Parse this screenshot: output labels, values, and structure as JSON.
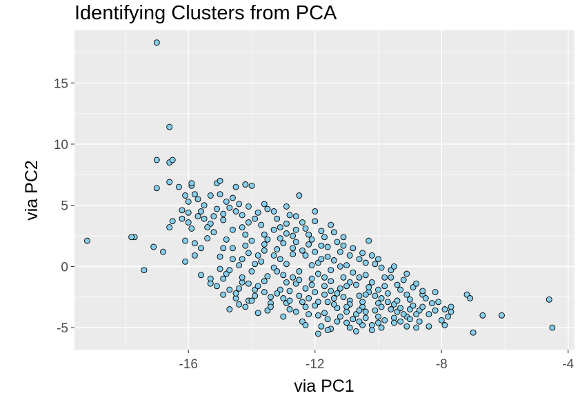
{
  "chart_data": {
    "type": "scatter",
    "title": "Identifying Clusters from PCA",
    "xlabel": "via PC1",
    "ylabel": "via PC2",
    "xlim": [
      -19.6,
      -3.8
    ],
    "ylim": [
      -6.8,
      19.3
    ],
    "x_ticks": [
      -16,
      -12,
      -8,
      -4
    ],
    "y_ticks": [
      -5,
      0,
      5,
      10,
      15
    ],
    "x_tick_labels": [
      "-16",
      "-12",
      "-8",
      "-4"
    ],
    "y_tick_labels": [
      "-5",
      "0",
      "5",
      "10",
      "15"
    ],
    "grid": true,
    "legend": "none",
    "colors": {
      "panel_background": "#ebebeb",
      "gridline": "#ffffff",
      "point_fill": "#87ceeb",
      "point_outline": "#000000"
    },
    "points": [
      [
        -17.0,
        18.3
      ],
      [
        -16.6,
        11.4
      ],
      [
        -17.0,
        8.7
      ],
      [
        -16.6,
        8.5
      ],
      [
        -16.5,
        8.7
      ],
      [
        -16.6,
        6.9
      ],
      [
        -17.0,
        6.4
      ],
      [
        -16.3,
        6.5
      ],
      [
        -15.9,
        6.6
      ],
      [
        -15.9,
        6.8
      ],
      [
        -15.1,
        6.8
      ],
      [
        -15.0,
        7.0
      ],
      [
        -14.5,
        6.5
      ],
      [
        -14.2,
        6.7
      ],
      [
        -14.0,
        6.6
      ],
      [
        -12.5,
        5.8
      ],
      [
        -15.7,
        5.5
      ],
      [
        -16.0,
        5.3
      ],
      [
        -15.3,
        5.8
      ],
      [
        -15.0,
        5.9
      ],
      [
        -16.2,
        4.6
      ],
      [
        -16.0,
        4.4
      ],
      [
        -15.6,
        4.5
      ],
      [
        -16.5,
        3.7
      ],
      [
        -16.2,
        3.9
      ],
      [
        -15.9,
        3.1
      ],
      [
        -15.8,
        1.9
      ],
      [
        -16.6,
        3.2
      ],
      [
        -16.1,
        2.1
      ],
      [
        -15.6,
        1.5
      ],
      [
        -15.8,
        0.9
      ],
      [
        -16.8,
        1.2
      ],
      [
        -17.1,
        1.6
      ],
      [
        -16.1,
        0.4
      ],
      [
        -17.7,
        2.4
      ],
      [
        -17.8,
        2.4
      ],
      [
        -19.2,
        2.1
      ],
      [
        -17.4,
        -0.3
      ],
      [
        -15.6,
        -0.7
      ],
      [
        -15.3,
        -1.0
      ],
      [
        -15.3,
        -1.4
      ],
      [
        -15.0,
        -0.2
      ],
      [
        -14.9,
        -1.0
      ],
      [
        -14.7,
        -1.9
      ],
      [
        -14.5,
        -2.6
      ],
      [
        -14.4,
        -3.1
      ],
      [
        -14.1,
        -2.8
      ],
      [
        -14.7,
        -3.5
      ],
      [
        -13.8,
        -3.8
      ],
      [
        -11.9,
        -5.5
      ],
      [
        -11.5,
        -5.1
      ],
      [
        -10.7,
        -5.3
      ],
      [
        -10.2,
        -5.2
      ],
      [
        -9.1,
        -4.9
      ],
      [
        -8.8,
        -5.0
      ],
      [
        -8.4,
        -4.9
      ],
      [
        -7.9,
        -4.8
      ],
      [
        -7.7,
        -3.7
      ],
      [
        -7.9,
        -3.5
      ],
      [
        -8.2,
        -2.1
      ],
      [
        -7.2,
        -2.3
      ],
      [
        -7.1,
        -2.6
      ],
      [
        -6.7,
        -4.0
      ],
      [
        -7.0,
        -5.4
      ],
      [
        -6.1,
        -4.0
      ],
      [
        -4.6,
        -2.7
      ],
      [
        -4.5,
        -5.0
      ],
      [
        -9.6,
        -0.9
      ],
      [
        -10.3,
        2.1
      ],
      [
        -11.1,
        2.4
      ],
      [
        -11.5,
        3.4
      ],
      [
        -12.0,
        4.5
      ],
      [
        -12.8,
        4.2
      ],
      [
        -13.5,
        4.7
      ],
      [
        -14.3,
        4.2
      ],
      [
        -14.9,
        4.3
      ],
      [
        -15.3,
        3.5
      ],
      [
        -14.6,
        3.0
      ],
      [
        -14.2,
        2.6
      ],
      [
        -13.7,
        3.4
      ],
      [
        -13.2,
        3.9
      ],
      [
        -12.6,
        3.0
      ],
      [
        -12.2,
        2.6
      ],
      [
        -11.8,
        1.7
      ],
      [
        -11.2,
        1.2
      ],
      [
        -10.6,
        0.6
      ],
      [
        -10.1,
        0.2
      ],
      [
        -9.6,
        -0.3
      ],
      [
        -9.2,
        -1.1
      ],
      [
        -8.9,
        -1.7
      ],
      [
        -8.6,
        -2.3
      ],
      [
        -8.3,
        -3.0
      ],
      [
        -9.0,
        -3.5
      ],
      [
        -9.5,
        -4.2
      ],
      [
        -10.0,
        -4.6
      ],
      [
        -10.5,
        -4.8
      ],
      [
        -11.0,
        -4.6
      ],
      [
        -11.6,
        -4.3
      ],
      [
        -12.2,
        -3.9
      ],
      [
        -12.8,
        -3.5
      ],
      [
        -13.4,
        -3.0
      ],
      [
        -13.9,
        -2.4
      ],
      [
        -14.4,
        -1.8
      ],
      [
        -14.8,
        -0.6
      ],
      [
        -14.6,
        0.6
      ],
      [
        -14.1,
        1.1
      ],
      [
        -13.6,
        1.8
      ],
      [
        -13.1,
        2.3
      ],
      [
        -12.7,
        1.5
      ],
      [
        -12.3,
        0.9
      ],
      [
        -11.9,
        0.3
      ],
      [
        -11.5,
        -0.3
      ],
      [
        -11.1,
        -0.9
      ],
      [
        -10.7,
        -1.5
      ],
      [
        -10.3,
        -2.1
      ],
      [
        -9.9,
        -2.6
      ],
      [
        -9.5,
        -3.1
      ],
      [
        -10.1,
        -3.6
      ],
      [
        -10.7,
        -3.9
      ],
      [
        -11.3,
        -3.4
      ],
      [
        -11.9,
        -2.9
      ],
      [
        -12.5,
        -2.4
      ],
      [
        -13.1,
        -1.9
      ],
      [
        -13.6,
        -1.2
      ],
      [
        -14.0,
        -0.4
      ],
      [
        -13.7,
        0.4
      ],
      [
        -13.3,
        0.9
      ],
      [
        -12.9,
        0.2
      ],
      [
        -12.5,
        -0.4
      ],
      [
        -12.1,
        -1.0
      ],
      [
        -11.7,
        -1.6
      ],
      [
        -11.3,
        -2.2
      ],
      [
        -10.9,
        -2.8
      ],
      [
        -10.5,
        -3.3
      ],
      [
        -9.8,
        -1.6
      ],
      [
        -10.4,
        -0.7
      ],
      [
        -11.0,
        0.1
      ],
      [
        -11.6,
        0.8
      ],
      [
        -12.2,
        1.8
      ],
      [
        -12.9,
        2.7
      ],
      [
        -13.5,
        2.2
      ],
      [
        -14.1,
        3.6
      ],
      [
        -14.7,
        4.8
      ],
      [
        -15.2,
        4.1
      ],
      [
        -14.4,
        5.1
      ],
      [
        -13.6,
        5.1
      ],
      [
        -12.9,
        4.9
      ],
      [
        -13.1,
        3.2
      ],
      [
        -12.4,
        3.6
      ],
      [
        -11.8,
        2.9
      ],
      [
        -11.3,
        2.0
      ],
      [
        -10.8,
        1.5
      ],
      [
        -10.2,
        0.9
      ],
      [
        -9.9,
        -0.1
      ],
      [
        -9.3,
        -1.9
      ],
      [
        -9.0,
        -2.7
      ],
      [
        -8.7,
        -3.6
      ],
      [
        -9.3,
        -4.5
      ],
      [
        -9.9,
        -5.0
      ],
      [
        -10.4,
        -4.2
      ],
      [
        -11.0,
        -3.7
      ],
      [
        -11.8,
        -4.9
      ],
      [
        -12.4,
        -4.5
      ],
      [
        -13.0,
        -4.1
      ],
      [
        -13.5,
        -3.6
      ],
      [
        -14.2,
        -3.3
      ],
      [
        -14.9,
        -2.3
      ],
      [
        -15.1,
        -1.6
      ],
      [
        -14.3,
        -1.3
      ],
      [
        -13.9,
        -1.9
      ],
      [
        -13.4,
        -2.5
      ],
      [
        -12.9,
        -3.0
      ],
      [
        -12.3,
        -3.3
      ],
      [
        -11.7,
        -3.8
      ],
      [
        -11.2,
        -4.1
      ],
      [
        -10.6,
        -4.5
      ],
      [
        -10.0,
        -4.1
      ],
      [
        -9.4,
        -3.7
      ],
      [
        -9.7,
        -2.2
      ],
      [
        -10.2,
        -1.3
      ],
      [
        -10.8,
        -0.5
      ],
      [
        -11.4,
        0.5
      ],
      [
        -12.0,
        1.2
      ],
      [
        -12.6,
        2.0
      ],
      [
        -13.2,
        1.4
      ],
      [
        -13.8,
        0.9
      ],
      [
        -14.4,
        0.1
      ],
      [
        -13.0,
        -0.7
      ],
      [
        -12.6,
        -1.4
      ],
      [
        -12.0,
        -2.1
      ],
      [
        -11.4,
        -2.6
      ],
      [
        -10.9,
        -3.1
      ],
      [
        -11.5,
        -1.2
      ],
      [
        -12.8,
        -2.0
      ],
      [
        -13.3,
        -0.1
      ],
      [
        -12.7,
        1.0
      ],
      [
        -11.9,
        -0.6
      ],
      [
        -11.2,
        -1.8
      ],
      [
        -10.6,
        -2.4
      ],
      [
        -10.0,
        -3.0
      ],
      [
        -9.6,
        -3.5
      ],
      [
        -9.1,
        -4.1
      ],
      [
        -8.7,
        -4.5
      ],
      [
        -8.4,
        -3.9
      ],
      [
        -8.5,
        -2.6
      ],
      [
        -9.1,
        -2.3
      ],
      [
        -9.4,
        -1.5
      ],
      [
        -9.8,
        -0.9
      ],
      [
        -10.4,
        0.3
      ],
      [
        -10.9,
        0.9
      ],
      [
        -11.6,
        1.6
      ],
      [
        -12.1,
        2.2
      ],
      [
        -12.7,
        2.5
      ],
      [
        -13.3,
        3.0
      ],
      [
        -13.9,
        3.9
      ],
      [
        -14.5,
        4.5
      ],
      [
        -15.1,
        4.7
      ],
      [
        -15.5,
        3.9
      ],
      [
        -15.2,
        2.8
      ],
      [
        -14.8,
        2.2
      ],
      [
        -14.2,
        1.7
      ],
      [
        -13.6,
        1.3
      ],
      [
        -13.0,
        1.9
      ],
      [
        -12.4,
        1.3
      ],
      [
        -11.8,
        0.6
      ],
      [
        -11.2,
        0.0
      ],
      [
        -10.6,
        -0.9
      ],
      [
        -10.0,
        -1.9
      ],
      [
        -9.4,
        -2.8
      ],
      [
        -8.9,
        -3.2
      ],
      [
        -9.2,
        -3.9
      ],
      [
        -9.8,
        -4.4
      ],
      [
        -10.4,
        -3.7
      ],
      [
        -11.0,
        -3.3
      ],
      [
        -11.6,
        -2.9
      ],
      [
        -12.2,
        -2.6
      ],
      [
        -12.8,
        -2.8
      ],
      [
        -13.4,
        -3.3
      ],
      [
        -14.0,
        -2.8
      ],
      [
        -14.5,
        -2.2
      ],
      [
        -14.1,
        -1.4
      ],
      [
        -13.5,
        -0.8
      ],
      [
        -12.9,
        -1.3
      ],
      [
        -12.3,
        -1.8
      ],
      [
        -11.7,
        -2.3
      ],
      [
        -11.1,
        -2.5
      ],
      [
        -10.5,
        -2.9
      ],
      [
        -10.1,
        -2.4
      ],
      [
        -11.3,
        -4.5
      ],
      [
        -11.9,
        -4.0
      ],
      [
        -12.6,
        -3.7
      ],
      [
        -13.2,
        -2.2
      ],
      [
        -13.8,
        -1.6
      ],
      [
        -14.3,
        -0.9
      ],
      [
        -13.9,
        0.2
      ],
      [
        -13.2,
        -0.4
      ],
      [
        -12.7,
        -0.9
      ],
      [
        -12.1,
        -1.5
      ],
      [
        -11.5,
        -2.0
      ],
      [
        -10.9,
        -1.3
      ],
      [
        -10.3,
        -1.7
      ],
      [
        -9.7,
        -2.9
      ],
      [
        -9.3,
        -3.4
      ],
      [
        -8.8,
        -3.9
      ],
      [
        -10.8,
        -4.3
      ],
      [
        -12.0,
        -3.2
      ],
      [
        -12.5,
        -1.1
      ],
      [
        -13.1,
        0.6
      ],
      [
        -13.6,
        2.6
      ],
      [
        -14.0,
        2.1
      ],
      [
        -14.6,
        1.5
      ],
      [
        -15.0,
        0.8
      ],
      [
        -14.7,
        -0.3
      ],
      [
        -12.1,
        0.1
      ],
      [
        -11.7,
        -0.9
      ],
      [
        -11.0,
        -1.6
      ],
      [
        -10.4,
        -2.3
      ],
      [
        -9.9,
        -3.3
      ],
      [
        -10.6,
        -3.6
      ],
      [
        -11.4,
        -3.1
      ],
      [
        -12.4,
        -2.9
      ],
      [
        -13.0,
        -2.6
      ],
      [
        -13.6,
        -2.1
      ],
      [
        -12.9,
        3.5
      ],
      [
        -12.3,
        3.1
      ],
      [
        -11.7,
        2.4
      ],
      [
        -11.1,
        1.7
      ],
      [
        -10.5,
        1.1
      ],
      [
        -10.0,
        0.6
      ],
      [
        -9.5,
        0.0
      ],
      [
        -9.1,
        -0.6
      ],
      [
        -8.8,
        -1.4
      ],
      [
        -8.6,
        -2.0
      ],
      [
        -13.8,
        4.4
      ],
      [
        -14.3,
        3.2
      ],
      [
        -15.4,
        3.2
      ],
      [
        -15.7,
        4.1
      ],
      [
        -16.0,
        3.6
      ],
      [
        -14.8,
        5.3
      ],
      [
        -14.1,
        4.9
      ],
      [
        -13.3,
        4.5
      ],
      [
        -12.6,
        4.1
      ],
      [
        -12.0,
        3.7
      ],
      [
        -11.4,
        2.8
      ],
      [
        -15.8,
        5.9
      ],
      [
        -16.1,
        5.8
      ],
      [
        -15.5,
        5.0
      ],
      [
        -14.6,
        5.6
      ],
      [
        -14.9,
        3.8
      ],
      [
        -15.4,
        2.3
      ],
      [
        -14.9,
        1.5
      ],
      [
        -14.3,
        0.6
      ],
      [
        -12.3,
        -4.8
      ],
      [
        -11.6,
        -5.2
      ],
      [
        -10.9,
        -5.0
      ],
      [
        -10.2,
        -4.8
      ],
      [
        -9.5,
        -4.6
      ],
      [
        -9.0,
        -4.3
      ],
      [
        -8.6,
        -3.3
      ],
      [
        -8.1,
        -2.9
      ],
      [
        -8.2,
        -3.6
      ],
      [
        -7.7,
        -3.3
      ],
      [
        -7.8,
        -4.1
      ],
      [
        -8.0,
        -4.4
      ]
    ]
  }
}
